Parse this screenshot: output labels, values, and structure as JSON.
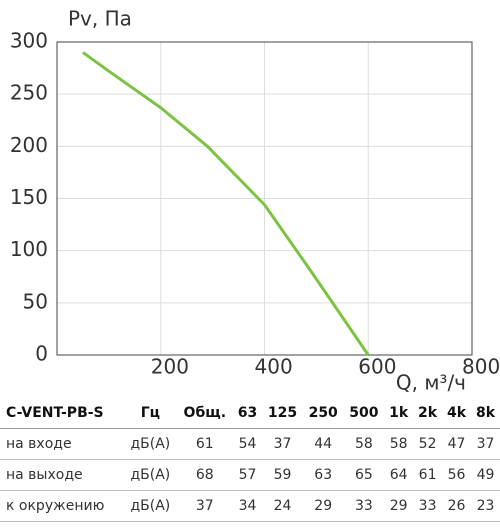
{
  "chart_data": {
    "type": "line",
    "y_label": "Pv, Па",
    "x_label": "Q, м³/ч",
    "x": [
      50,
      100,
      200,
      290,
      400,
      490,
      600
    ],
    "values": [
      290,
      272,
      237,
      200,
      144,
      80,
      0
    ],
    "color": "#7dc242",
    "xlim": [
      0,
      800
    ],
    "xticks": [
      200,
      400,
      600,
      800
    ],
    "ylim": [
      0,
      300
    ],
    "yticks": [
      0,
      50,
      100,
      150,
      200,
      250,
      300
    ],
    "grid": true
  },
  "table": {
    "header": [
      "C-VENT-PB-S",
      "Гц",
      "Общ.",
      "63",
      "125",
      "250",
      "500",
      "1k",
      "2k",
      "4k",
      "8k"
    ],
    "rows": [
      [
        "на входе",
        "дБ(А)",
        61,
        54,
        37,
        44,
        58,
        58,
        52,
        47,
        37
      ],
      [
        "на выходе",
        "дБ(А)",
        68,
        57,
        59,
        63,
        65,
        64,
        61,
        56,
        49
      ],
      [
        "к окружению",
        "дБ(А)",
        37,
        34,
        24,
        29,
        33,
        29,
        33,
        26,
        23
      ]
    ]
  }
}
